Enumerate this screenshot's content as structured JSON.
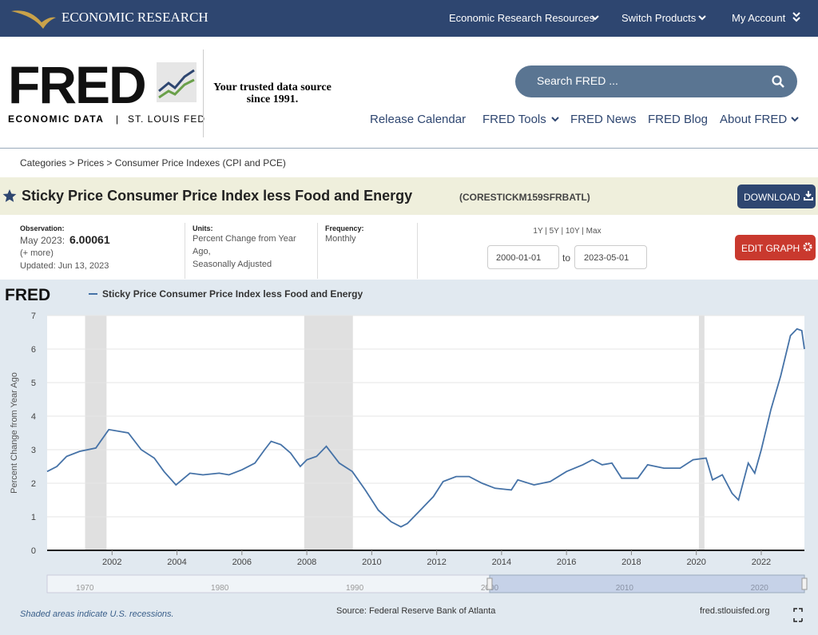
{
  "topbar": {
    "brand": "ECONOMIC RESEARCH",
    "menu": [
      "Economic Research Resources",
      "Switch Products",
      "My Account"
    ]
  },
  "header": {
    "logo": "FRED",
    "logo_sub": "ECONOMIC DATA",
    "logo_sep": "|",
    "logo_org": "ST. LOUIS FED",
    "tagline": [
      "Your trusted data source",
      "since 1991."
    ],
    "search_placeholder": "Search FRED ...",
    "nav": [
      "Release Calendar",
      "FRED Tools",
      "FRED News",
      "FRED Blog",
      "About FRED"
    ]
  },
  "breadcrumbs": {
    "items": [
      "Categories",
      "Prices",
      "Consumer Price Indexes (CPI and PCE)"
    ],
    "separator": ">"
  },
  "series_header": {
    "title": "Sticky Price Consumer Price Index less Food and Energy",
    "id": "(CORESTICKM159SFRBATL)",
    "download": "DOWNLOAD"
  },
  "meta": {
    "observation_label": "Observation:",
    "observation_date": "May 2023:",
    "observation_value": "6.00061",
    "more": "(+ more)",
    "updated": "Updated: Jun 13, 2023",
    "units_label": "Units:",
    "units": [
      "Percent Change from Year",
      "Ago,",
      "Seasonally Adjusted"
    ],
    "frequency_label": "Frequency:",
    "frequency": "Monthly",
    "ranges": [
      "1Y",
      "5Y",
      "10Y",
      "Max"
    ],
    "range_sep": "|",
    "start": "2000-01-01",
    "to": "to",
    "end": "2023-05-01",
    "edit": "EDIT GRAPH"
  },
  "chart_data": {
    "type": "line",
    "logo": "FRED",
    "ylabel": "Percent Change from Year Ago",
    "x": [
      2000.0,
      2000.3,
      2000.6,
      2001.0,
      2001.5,
      2001.9,
      2002.5,
      2002.9,
      2003.3,
      2003.6,
      2003.97,
      2004.4,
      2004.8,
      2005.3,
      2005.6,
      2006.0,
      2006.4,
      2006.7,
      2006.9,
      2007.2,
      2007.5,
      2007.8,
      2008.0,
      2008.3,
      2008.6,
      2009.0,
      2009.4,
      2009.8,
      2010.2,
      2010.6,
      2010.9,
      2011.1,
      2011.5,
      2011.9,
      2012.2,
      2012.6,
      2013.0,
      2013.4,
      2013.8,
      2014.3,
      2014.5,
      2015.0,
      2015.5,
      2016.0,
      2016.5,
      2016.8,
      2017.1,
      2017.4,
      2017.7,
      2018.2,
      2018.5,
      2019.0,
      2019.5,
      2019.9,
      2020.3,
      2020.5,
      2020.8,
      2021.1,
      2021.3,
      2021.6,
      2021.8,
      2022.0,
      2022.3,
      2022.6,
      2022.9,
      2023.1,
      2023.25,
      2023.33
    ],
    "series": [
      {
        "name": "Sticky Price Consumer Price Index less Food and Energy",
        "color": "#4572a7",
        "values": [
          2.35,
          2.5,
          2.8,
          2.95,
          3.05,
          3.6,
          3.5,
          3.0,
          2.75,
          2.35,
          1.95,
          2.3,
          2.25,
          2.3,
          2.25,
          2.4,
          2.6,
          3.0,
          3.25,
          3.15,
          2.9,
          2.5,
          2.7,
          2.8,
          3.1,
          2.6,
          2.35,
          1.8,
          1.2,
          0.85,
          0.7,
          0.8,
          1.2,
          1.6,
          2.05,
          2.2,
          2.2,
          2.0,
          1.85,
          1.8,
          2.1,
          1.95,
          2.05,
          2.35,
          2.55,
          2.7,
          2.55,
          2.6,
          2.15,
          2.15,
          2.55,
          2.45,
          2.45,
          2.7,
          2.75,
          2.1,
          2.25,
          1.7,
          1.5,
          2.6,
          2.3,
          3.0,
          4.2,
          5.2,
          6.4,
          6.6,
          6.55,
          6.0
        ]
      }
    ],
    "recessions": [
      [
        2001.17,
        2001.83
      ],
      [
        2007.92,
        2009.42
      ],
      [
        2020.08,
        2020.25
      ]
    ],
    "xlim": [
      2000,
      2023.33
    ],
    "ylim": [
      0,
      7
    ],
    "xticks": [
      2002,
      2004,
      2006,
      2008,
      2010,
      2012,
      2014,
      2016,
      2018,
      2020,
      2022
    ],
    "yticks": [
      0,
      1,
      2,
      3,
      4,
      5,
      6,
      7
    ],
    "grid": true,
    "navigator": {
      "xlim": [
        1967.2,
        2023.33
      ],
      "xticks": [
        1970,
        1980,
        1990,
        2000,
        2010,
        2020
      ]
    }
  },
  "footer": {
    "note": "Shaded areas indicate U.S. recessions.",
    "source": "Source: Federal Reserve Bank of Atlanta",
    "site": "fred.stlouisfed.org"
  }
}
